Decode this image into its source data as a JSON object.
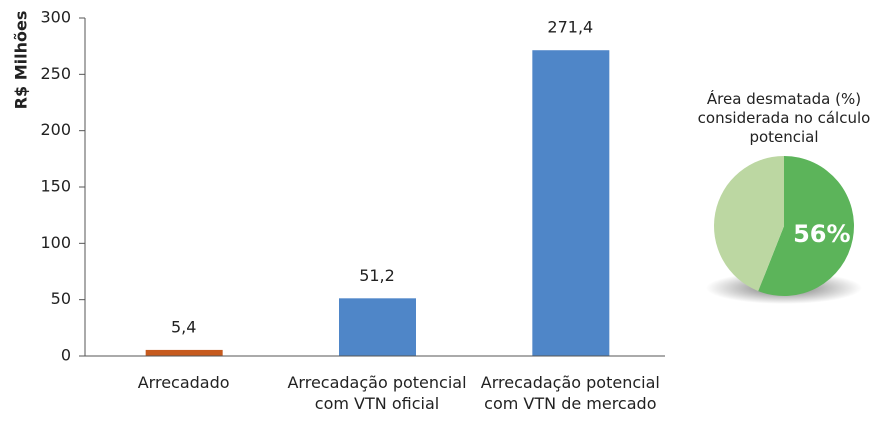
{
  "chart_data": [
    {
      "type": "bar",
      "ylabel": "R$ Milhões",
      "categories": [
        "Arrecadado",
        "Arrecadação potencial com VTN oficial",
        "Arrecadação potencial com VTN de mercado"
      ],
      "values": [
        5.4,
        51.2,
        271.4
      ],
      "value_labels": [
        "5,4",
        "51,2",
        "271,4"
      ],
      "colors": [
        "#c65a1e",
        "#4f86c8",
        "#4f86c8"
      ],
      "ylim": [
        0,
        300
      ],
      "yticks": [
        0,
        50,
        100,
        150,
        200,
        250,
        300
      ]
    },
    {
      "type": "pie",
      "title": "Área desmatada (%) considerada no cálculo potencial",
      "values": [
        56,
        44
      ],
      "value_labels": [
        "56%",
        null
      ],
      "colors": [
        "#5cb45a",
        "#bcd7a2"
      ]
    }
  ]
}
